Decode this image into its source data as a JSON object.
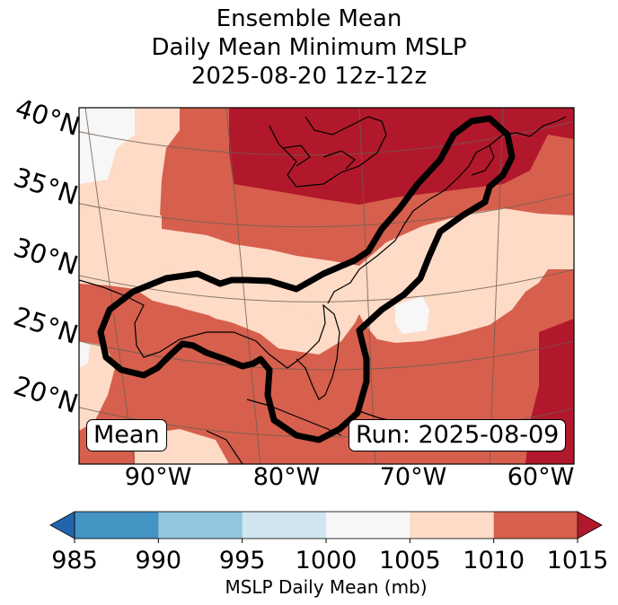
{
  "title": {
    "line1": "Ensemble Mean",
    "line2": "Daily Mean Minimum MSLP",
    "line3": "2025-08-20 12z-12z"
  },
  "map": {
    "lat_labels": [
      "40°N",
      "35°N",
      "30°N",
      "25°N",
      "20°N"
    ],
    "lon_labels": [
      "90°W",
      "80°W",
      "70°W",
      "60°W"
    ],
    "mean_label": "Mean",
    "run_label": "Run: 2025-08-09",
    "region": "US East Coast, Gulf of Mexico, western Atlantic"
  },
  "colorbar": {
    "ticks": [
      "985",
      "990",
      "995",
      "1000",
      "1005",
      "1010",
      "1015"
    ],
    "label": "MSLP Daily Mean (mb)",
    "bins": [
      {
        "from": 985,
        "to": 990,
        "color": "#4393c3"
      },
      {
        "from": 990,
        "to": 995,
        "color": "#92c5de"
      },
      {
        "from": 995,
        "to": 1000,
        "color": "#d1e5f0"
      },
      {
        "from": 1000,
        "to": 1005,
        "color": "#f7f7f7"
      },
      {
        "from": 1005,
        "to": 1010,
        "color": "#fddbc7"
      },
      {
        "from": 1010,
        "to": 1015,
        "color": "#d6604d"
      }
    ],
    "extend_low_color": "#2166ac",
    "extend_high_color": "#b2182b"
  }
}
